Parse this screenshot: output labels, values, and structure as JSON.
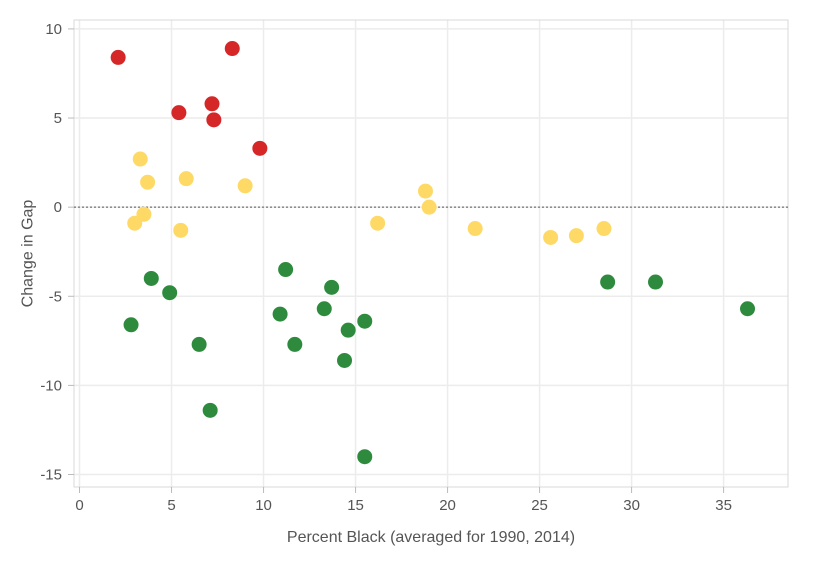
{
  "chart_data": {
    "type": "scatter",
    "title": "",
    "xlabel": "Percent Black (averaged for 1990, 2014)",
    "ylabel": "Change in Gap",
    "xlim": [
      -0.3,
      38.5
    ],
    "ylim": [
      -15.7,
      10.5
    ],
    "xticks": [
      0,
      5,
      10,
      15,
      20,
      25,
      30,
      35
    ],
    "yticks": [
      10,
      5,
      0,
      -5,
      -10,
      -15
    ],
    "grid": true,
    "reference_line": {
      "y": 0,
      "style": "dotted"
    },
    "legend": "none",
    "colors": {
      "red": "#d62728",
      "yellow": "#ffd966",
      "green": "#2e8b3e"
    },
    "series": [
      {
        "color": "#d62728",
        "points": [
          {
            "x": 2.1,
            "y": 8.4
          },
          {
            "x": 5.4,
            "y": 5.3
          },
          {
            "x": 7.2,
            "y": 5.8
          },
          {
            "x": 7.3,
            "y": 4.9
          },
          {
            "x": 8.3,
            "y": 8.9
          },
          {
            "x": 9.8,
            "y": 3.3
          }
        ]
      },
      {
        "color": "#ffd966",
        "points": [
          {
            "x": 3.3,
            "y": 2.7
          },
          {
            "x": 3.7,
            "y": 1.4
          },
          {
            "x": 5.8,
            "y": 1.6
          },
          {
            "x": 9.0,
            "y": 1.2
          },
          {
            "x": 3.0,
            "y": -0.9
          },
          {
            "x": 3.5,
            "y": -0.4
          },
          {
            "x": 5.5,
            "y": -1.3
          },
          {
            "x": 16.2,
            "y": -0.9
          },
          {
            "x": 18.8,
            "y": 0.9
          },
          {
            "x": 19.0,
            "y": 0.0
          },
          {
            "x": 21.5,
            "y": -1.2
          },
          {
            "x": 25.6,
            "y": -1.7
          },
          {
            "x": 27.0,
            "y": -1.6
          },
          {
            "x": 28.5,
            "y": -1.2
          }
        ]
      },
      {
        "color": "#2e8b3e",
        "points": [
          {
            "x": 2.8,
            "y": -6.6
          },
          {
            "x": 3.9,
            "y": -4.0
          },
          {
            "x": 4.9,
            "y": -4.8
          },
          {
            "x": 6.5,
            "y": -7.7
          },
          {
            "x": 7.1,
            "y": -11.4
          },
          {
            "x": 10.9,
            "y": -6.0
          },
          {
            "x": 11.2,
            "y": -3.5
          },
          {
            "x": 11.7,
            "y": -7.7
          },
          {
            "x": 13.3,
            "y": -5.7
          },
          {
            "x": 13.7,
            "y": -4.5
          },
          {
            "x": 14.4,
            "y": -8.6
          },
          {
            "x": 14.6,
            "y": -6.9
          },
          {
            "x": 15.5,
            "y": -6.4
          },
          {
            "x": 15.5,
            "y": -14.0
          },
          {
            "x": 28.7,
            "y": -4.2
          },
          {
            "x": 31.3,
            "y": -4.2
          },
          {
            "x": 36.3,
            "y": -5.7
          }
        ]
      }
    ]
  }
}
